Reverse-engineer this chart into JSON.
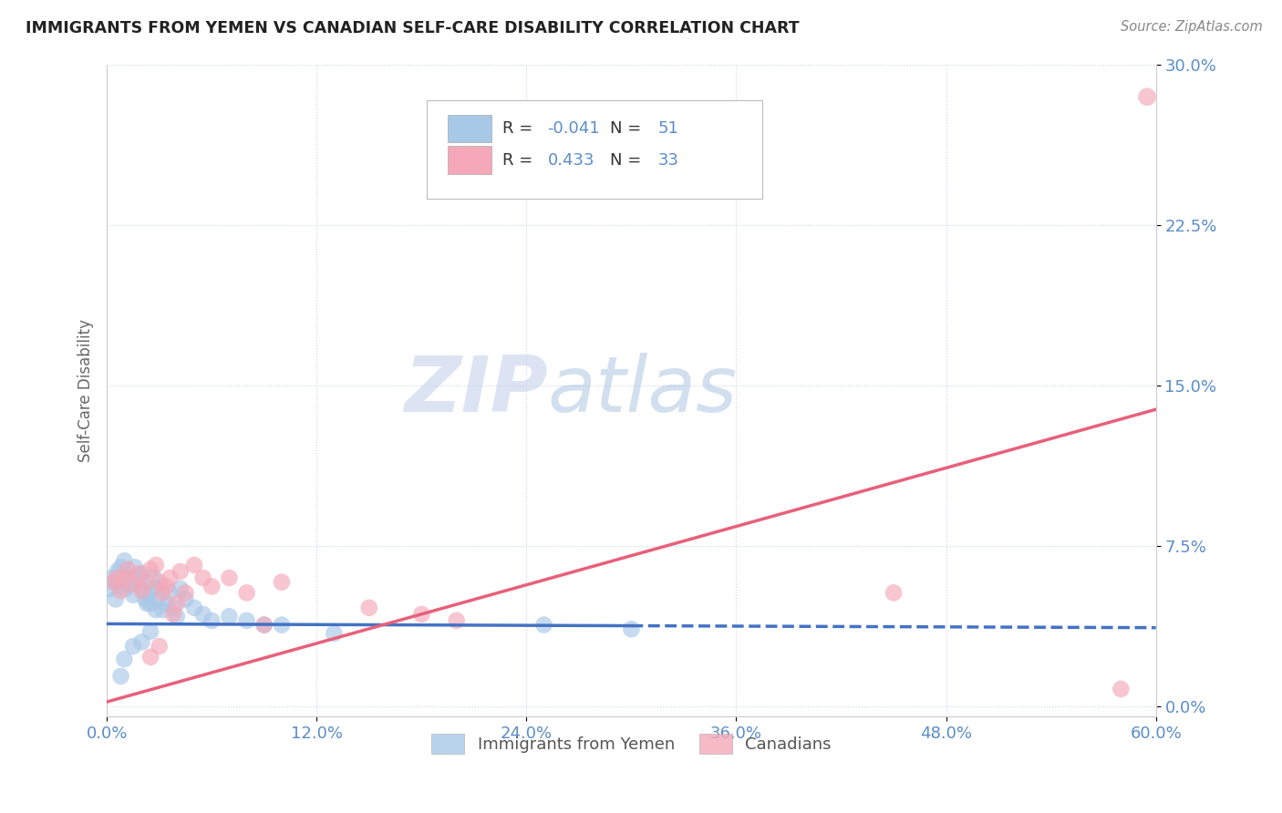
{
  "title": "IMMIGRANTS FROM YEMEN VS CANADIAN SELF-CARE DISABILITY CORRELATION CHART",
  "source": "Source: ZipAtlas.com",
  "xlabel_ticks": [
    "0.0%",
    "12.0%",
    "24.0%",
    "36.0%",
    "48.0%",
    "60.0%"
  ],
  "xlabel_vals": [
    0.0,
    0.12,
    0.24,
    0.36,
    0.48,
    0.6
  ],
  "ylabel": "Self-Care Disability",
  "ylabel_ticks": [
    "0.0%",
    "7.5%",
    "15.0%",
    "22.5%",
    "30.0%"
  ],
  "ylabel_vals": [
    0.0,
    0.075,
    0.15,
    0.225,
    0.3
  ],
  "xlim": [
    0.0,
    0.6
  ],
  "ylim": [
    -0.005,
    0.3
  ],
  "blue_color": "#A8C8E8",
  "pink_color": "#F4A8B8",
  "blue_line_color": "#4472C4",
  "pink_line_color": "#E8607A",
  "r_blue": -0.041,
  "n_blue": 51,
  "r_pink": 0.433,
  "n_pink": 33,
  "watermark_zip": "ZIP",
  "watermark_atlas": "atlas",
  "blue_points_x": [
    0.002,
    0.003,
    0.004,
    0.005,
    0.006,
    0.007,
    0.008,
    0.009,
    0.01,
    0.011,
    0.012,
    0.013,
    0.014,
    0.015,
    0.016,
    0.017,
    0.018,
    0.019,
    0.02,
    0.021,
    0.022,
    0.023,
    0.024,
    0.025,
    0.026,
    0.027,
    0.028,
    0.029,
    0.03,
    0.032,
    0.034,
    0.036,
    0.038,
    0.04,
    0.042,
    0.045,
    0.05,
    0.055,
    0.06,
    0.07,
    0.08,
    0.09,
    0.1,
    0.015,
    0.01,
    0.008,
    0.02,
    0.025,
    0.25,
    0.3,
    0.13
  ],
  "blue_points_y": [
    0.055,
    0.06,
    0.058,
    0.05,
    0.063,
    0.056,
    0.065,
    0.06,
    0.068,
    0.055,
    0.06,
    0.057,
    0.058,
    0.052,
    0.065,
    0.059,
    0.06,
    0.056,
    0.062,
    0.054,
    0.05,
    0.048,
    0.052,
    0.048,
    0.055,
    0.06,
    0.045,
    0.05,
    0.055,
    0.045,
    0.048,
    0.053,
    0.046,
    0.042,
    0.055,
    0.05,
    0.046,
    0.043,
    0.04,
    0.042,
    0.04,
    0.038,
    0.038,
    0.028,
    0.022,
    0.014,
    0.03,
    0.035,
    0.038,
    0.036,
    0.034
  ],
  "pink_points_x": [
    0.004,
    0.006,
    0.008,
    0.01,
    0.012,
    0.015,
    0.018,
    0.02,
    0.022,
    0.025,
    0.028,
    0.03,
    0.032,
    0.034,
    0.036,
    0.038,
    0.04,
    0.042,
    0.045,
    0.05,
    0.055,
    0.06,
    0.07,
    0.08,
    0.09,
    0.1,
    0.15,
    0.18,
    0.2,
    0.45,
    0.03,
    0.025,
    0.58
  ],
  "pink_points_y": [
    0.058,
    0.06,
    0.054,
    0.06,
    0.064,
    0.057,
    0.062,
    0.054,
    0.058,
    0.064,
    0.066,
    0.058,
    0.053,
    0.056,
    0.06,
    0.043,
    0.048,
    0.063,
    0.053,
    0.066,
    0.06,
    0.056,
    0.06,
    0.053,
    0.038,
    0.058,
    0.046,
    0.043,
    0.04,
    0.053,
    0.028,
    0.023,
    0.008
  ],
  "grid_color": "#C8D4E8",
  "tick_label_color": "#5B8DC8",
  "axis_label_color": "#666666",
  "background_color": "#FFFFFF",
  "blue_trend_solid_end": 0.3,
  "blue_trend_intercept": 0.0385,
  "blue_trend_slope": -0.003,
  "pink_trend_intercept": 0.002,
  "pink_trend_slope": 0.228
}
